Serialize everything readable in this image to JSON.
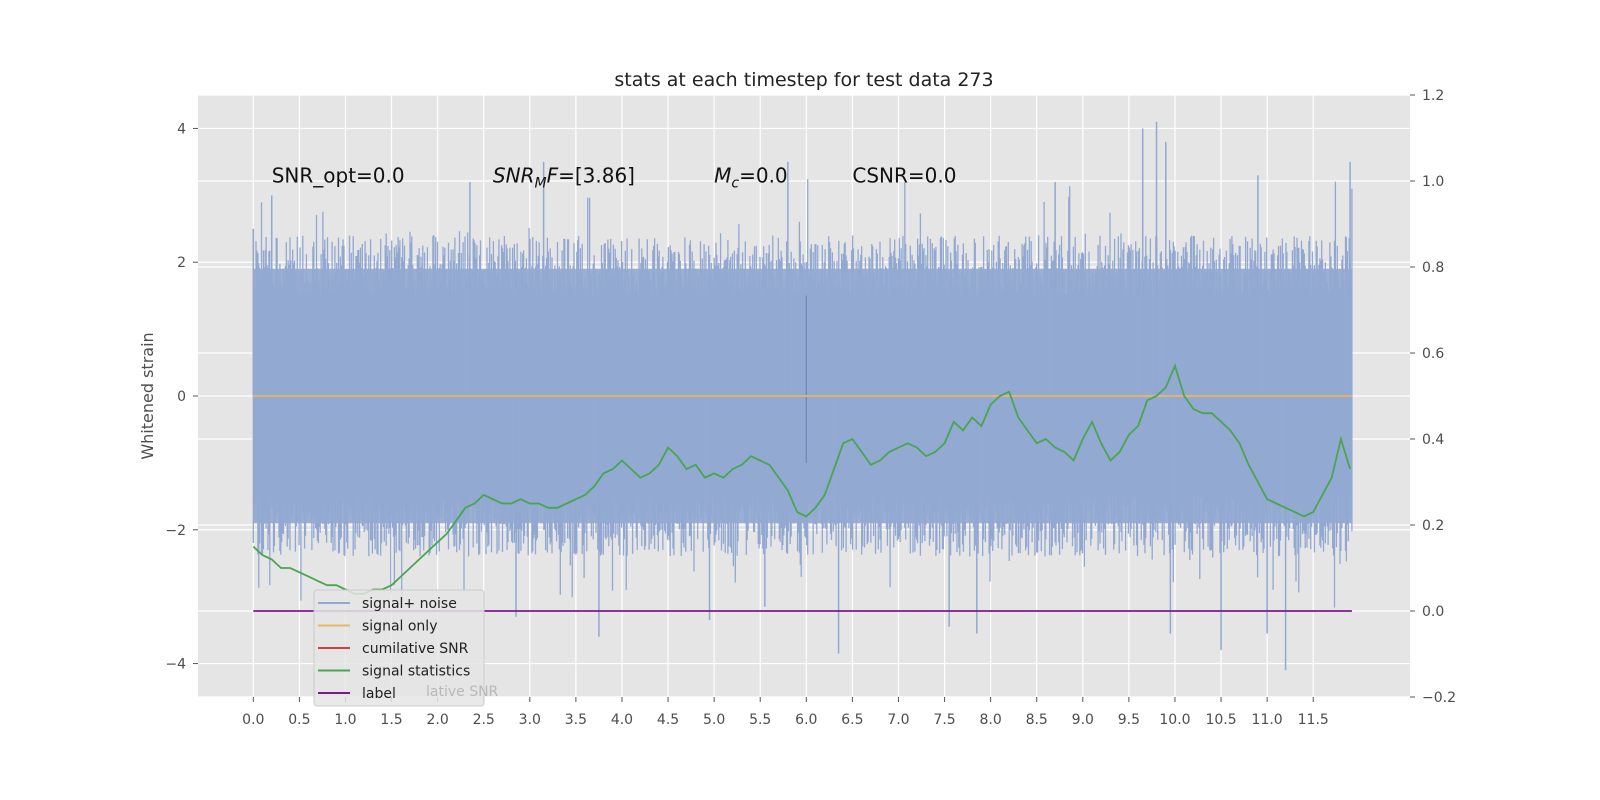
{
  "chart_data": {
    "type": "line",
    "title": "stats at each timestep for test data 273",
    "ylabel": "Whitened strain",
    "xlim": [
      -0.6,
      12.55
    ],
    "ylim": [
      -4.5,
      4.5
    ],
    "y2lim": [
      -0.2,
      1.2
    ],
    "x_ticks": [
      0.0,
      0.5,
      1.0,
      1.5,
      2.0,
      2.5,
      3.0,
      3.5,
      4.0,
      4.5,
      5.0,
      5.5,
      6.0,
      6.5,
      7.0,
      7.5,
      8.0,
      8.5,
      9.0,
      9.5,
      10.0,
      10.5,
      11.0,
      11.5
    ],
    "x_tick_labels": [
      "0.0",
      "0.5",
      "1.0",
      "1.5",
      "2.0",
      "2.5",
      "3.0",
      "3.5",
      "4.0",
      "4.5",
      "5.0",
      "5.5",
      "6.0",
      "6.5",
      "7.0",
      "7.5",
      "8.0",
      "8.5",
      "9.0",
      "9.5",
      "10.0",
      "10.5",
      "11.0",
      "11.5"
    ],
    "y_ticks": [
      -4,
      -2,
      0,
      2,
      4
    ],
    "y_tick_labels": [
      "−4",
      "−2",
      "0",
      "2",
      "4"
    ],
    "y2_ticks": [
      -0.2,
      0.0,
      0.2,
      0.4,
      0.6,
      0.8,
      1.0,
      1.2
    ],
    "y2_tick_labels": [
      "−0.2",
      "0.0",
      "0.2",
      "0.4",
      "0.6",
      "0.8",
      "1.0",
      "1.2"
    ],
    "annotations": [
      {
        "text": "SNR_opt=0.0",
        "x": 0.2,
        "y": 3.3
      },
      {
        "text": "SNR_MF=[3.86]",
        "main": "SNR",
        "sub": "M",
        "rest": "F=[3.86]",
        "x": 2.6,
        "y": 3.3
      },
      {
        "text": "M_c=0.0",
        "main": "M",
        "sub": "c",
        "rest": "=0.0",
        "x": 5.0,
        "y": 3.3
      },
      {
        "text": "CSNR=0.0",
        "x": 6.5,
        "y": 3.3
      }
    ],
    "grid": true,
    "legend_position": "lower-left",
    "series": [
      {
        "name": "signal+ noise",
        "color": "#92a8d1",
        "axis": "left",
        "noise_band": [
          -2.0,
          2.0
        ],
        "spikes": [
          [
            9.8,
            4.1
          ],
          [
            9.65,
            4.0
          ],
          [
            9.9,
            3.8
          ],
          [
            11.9,
            3.5
          ],
          [
            3.15,
            3.5
          ],
          [
            5.8,
            3.5
          ],
          [
            0.0,
            2.5
          ],
          [
            0.2,
            3.0
          ],
          [
            2.35,
            3.2
          ],
          [
            8.7,
            3.2
          ],
          [
            10.9,
            3.3
          ],
          [
            11.2,
            -4.1
          ],
          [
            6.35,
            -3.85
          ],
          [
            10.5,
            -3.8
          ],
          [
            3.75,
            -3.6
          ],
          [
            9.95,
            -3.55
          ],
          [
            7.55,
            -3.45
          ],
          [
            11.0,
            -3.55
          ],
          [
            2.85,
            -3.3
          ],
          [
            4.95,
            -3.35
          ],
          [
            5.55,
            -3.15
          ],
          [
            7.85,
            -3.55
          ]
        ]
      },
      {
        "name": "signal only",
        "color": "#e8b964",
        "axis": "left",
        "x": [
          0.0,
          11.92
        ],
        "y": [
          0.0,
          0.0
        ]
      },
      {
        "name": "cumilative SNR",
        "color": "#d04040",
        "axis": "right",
        "x": [],
        "y": []
      },
      {
        "name": "signal statistics",
        "color": "#4aa552",
        "axis": "right",
        "x": [
          0.0,
          0.1,
          0.2,
          0.3,
          0.4,
          0.5,
          0.6,
          0.7,
          0.8,
          0.9,
          1.0,
          1.1,
          1.2,
          1.3,
          1.4,
          1.5,
          1.6,
          1.7,
          1.8,
          1.9,
          2.0,
          2.1,
          2.2,
          2.3,
          2.4,
          2.5,
          2.6,
          2.7,
          2.8,
          2.9,
          3.0,
          3.1,
          3.2,
          3.3,
          3.4,
          3.5,
          3.6,
          3.7,
          3.8,
          3.9,
          4.0,
          4.1,
          4.2,
          4.3,
          4.4,
          4.5,
          4.6,
          4.7,
          4.8,
          4.9,
          5.0,
          5.1,
          5.2,
          5.3,
          5.4,
          5.5,
          5.6,
          5.7,
          5.8,
          5.9,
          6.0,
          6.1,
          6.2,
          6.3,
          6.4,
          6.5,
          6.6,
          6.7,
          6.8,
          6.9,
          7.0,
          7.1,
          7.2,
          7.3,
          7.4,
          7.5,
          7.6,
          7.7,
          7.8,
          7.9,
          8.0,
          8.1,
          8.2,
          8.3,
          8.4,
          8.5,
          8.6,
          8.7,
          8.8,
          8.9,
          9.0,
          9.1,
          9.2,
          9.3,
          9.4,
          9.5,
          9.6,
          9.7,
          9.8,
          9.9,
          10.0,
          10.1,
          10.2,
          10.3,
          10.4,
          10.5,
          10.6,
          10.7,
          10.8,
          10.9,
          11.0,
          11.1,
          11.2,
          11.3,
          11.4,
          11.5,
          11.6,
          11.7,
          11.8,
          11.9
        ],
        "y": [
          0.15,
          0.13,
          0.12,
          0.1,
          0.1,
          0.09,
          0.08,
          0.07,
          0.06,
          0.06,
          0.05,
          0.04,
          0.04,
          0.05,
          0.05,
          0.06,
          0.08,
          0.1,
          0.12,
          0.14,
          0.16,
          0.18,
          0.21,
          0.24,
          0.25,
          0.27,
          0.26,
          0.25,
          0.25,
          0.26,
          0.25,
          0.25,
          0.24,
          0.24,
          0.25,
          0.26,
          0.27,
          0.29,
          0.32,
          0.33,
          0.35,
          0.33,
          0.31,
          0.32,
          0.34,
          0.38,
          0.36,
          0.33,
          0.34,
          0.31,
          0.32,
          0.31,
          0.33,
          0.34,
          0.36,
          0.35,
          0.34,
          0.31,
          0.28,
          0.23,
          0.22,
          0.24,
          0.27,
          0.33,
          0.39,
          0.4,
          0.37,
          0.34,
          0.35,
          0.37,
          0.38,
          0.39,
          0.38,
          0.36,
          0.37,
          0.39,
          0.44,
          0.42,
          0.45,
          0.43,
          0.48,
          0.5,
          0.51,
          0.45,
          0.42,
          0.39,
          0.4,
          0.38,
          0.37,
          0.35,
          0.4,
          0.44,
          0.39,
          0.35,
          0.37,
          0.41,
          0.43,
          0.49,
          0.5,
          0.52,
          0.57,
          0.5,
          0.47,
          0.46,
          0.46,
          0.44,
          0.42,
          0.39,
          0.34,
          0.3,
          0.26,
          0.25,
          0.24,
          0.23,
          0.22,
          0.23,
          0.27,
          0.31,
          0.4,
          0.33
        ]
      },
      {
        "name": "label",
        "color": "#7b1a8a",
        "axis": "right",
        "x": [
          0.0,
          11.92
        ],
        "y": [
          0.0,
          0.0
        ]
      }
    ],
    "legend_overlap_text": "lative SNR"
  }
}
